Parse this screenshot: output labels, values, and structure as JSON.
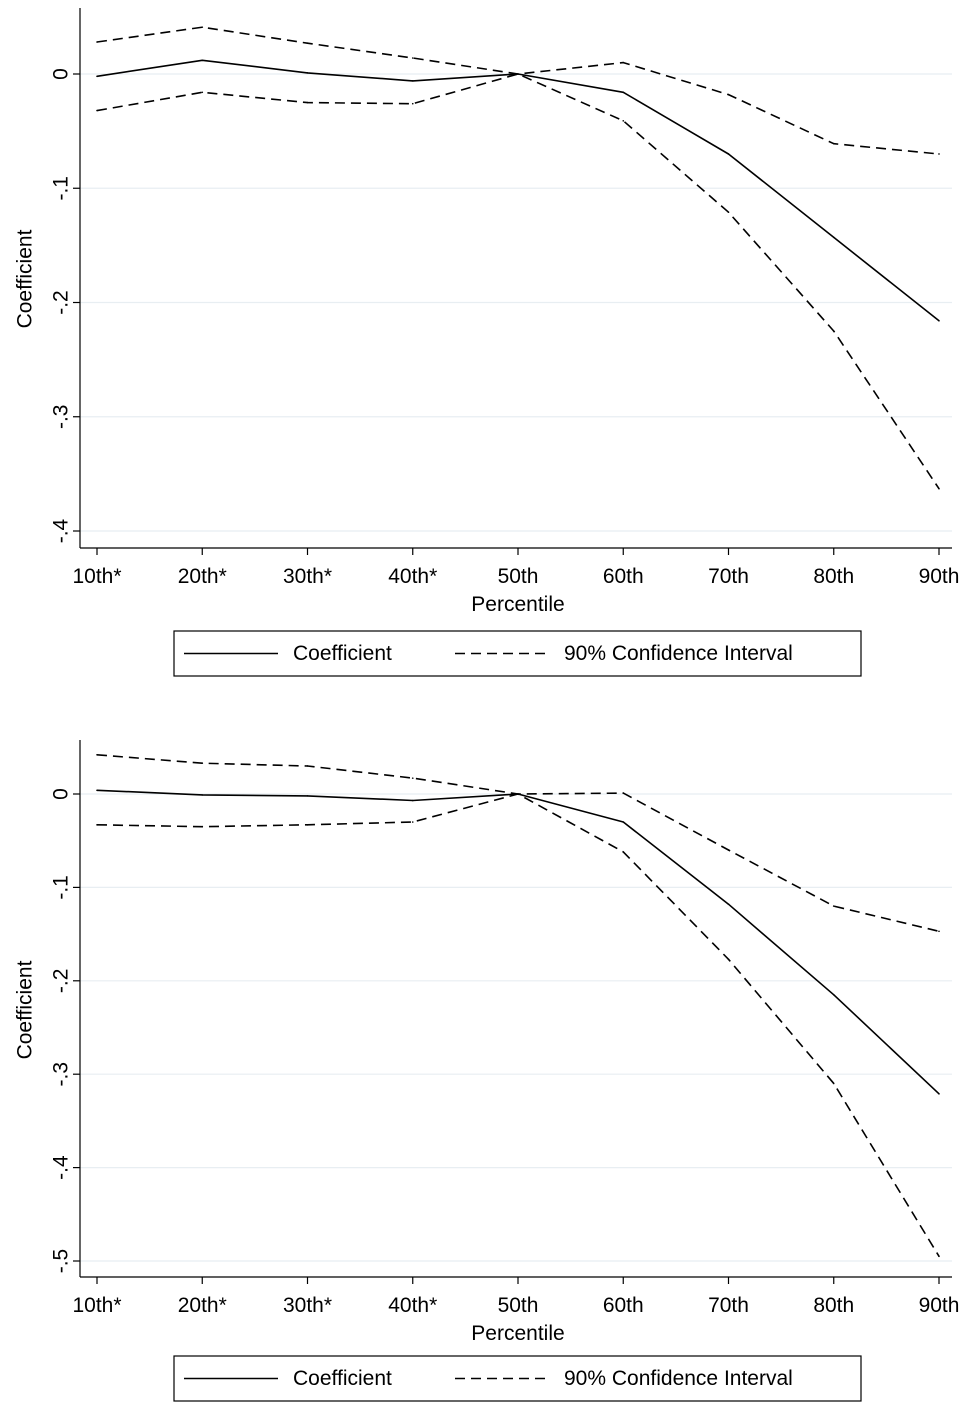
{
  "chart_data": [
    {
      "type": "line",
      "title": "",
      "xlabel": "Percentile",
      "ylabel": "Coefficient",
      "categories": [
        "10th*",
        "20th*",
        "30th*",
        "40th*",
        "50th",
        "60th",
        "70th",
        "80th",
        "90th"
      ],
      "ylim": [
        -0.4,
        0.05
      ],
      "yticks": [
        0,
        -0.1,
        -0.2,
        -0.3,
        -0.4
      ],
      "ytick_labels": [
        "0",
        "-.1",
        "-.2",
        "-.3",
        "-.4"
      ],
      "grid": true,
      "legend_position": "bottom",
      "series": [
        {
          "name": "Coefficient",
          "style": "solid",
          "values": [
            -0.002,
            0.012,
            0.001,
            -0.006,
            0.0,
            -0.016,
            -0.07,
            -0.143,
            -0.216
          ]
        },
        {
          "name": "90% Confidence Interval",
          "style": "dashed",
          "values": [
            0.028,
            0.041,
            0.027,
            0.014,
            0.0,
            0.01,
            -0.018,
            -0.061,
            -0.07
          ]
        },
        {
          "name": "90% Confidence Interval",
          "style": "dashed",
          "legend": false,
          "values": [
            -0.032,
            -0.016,
            -0.025,
            -0.026,
            0.0,
            -0.041,
            -0.121,
            -0.225,
            -0.363
          ]
        }
      ]
    },
    {
      "type": "line",
      "title": "",
      "xlabel": "Percentile",
      "ylabel": "Coefficient",
      "categories": [
        "10th*",
        "20th*",
        "30th*",
        "40th*",
        "50th",
        "60th",
        "70th",
        "80th",
        "90th"
      ],
      "ylim": [
        -0.5,
        0.05
      ],
      "yticks": [
        0,
        -0.1,
        -0.2,
        -0.3,
        -0.4,
        -0.5
      ],
      "ytick_labels": [
        "0",
        "-.1",
        "-.2",
        "-.3",
        "-.4",
        "-.5"
      ],
      "grid": true,
      "legend_position": "bottom",
      "series": [
        {
          "name": "Coefficient",
          "style": "solid",
          "values": [
            0.004,
            -0.001,
            -0.002,
            -0.007,
            0.0,
            -0.03,
            -0.118,
            -0.215,
            -0.321
          ]
        },
        {
          "name": "90% Confidence Interval",
          "style": "dashed",
          "values": [
            0.042,
            0.033,
            0.03,
            0.017,
            0.0,
            0.001,
            -0.06,
            -0.12,
            -0.147
          ]
        },
        {
          "name": "90% Confidence Interval",
          "style": "dashed",
          "legend": false,
          "values": [
            -0.033,
            -0.035,
            -0.033,
            -0.03,
            0.0,
            -0.062,
            -0.177,
            -0.31,
            -0.495
          ]
        }
      ]
    }
  ],
  "colors": {
    "line": "#000000",
    "grid": "#e8eef2",
    "background": "#ffffff"
  }
}
